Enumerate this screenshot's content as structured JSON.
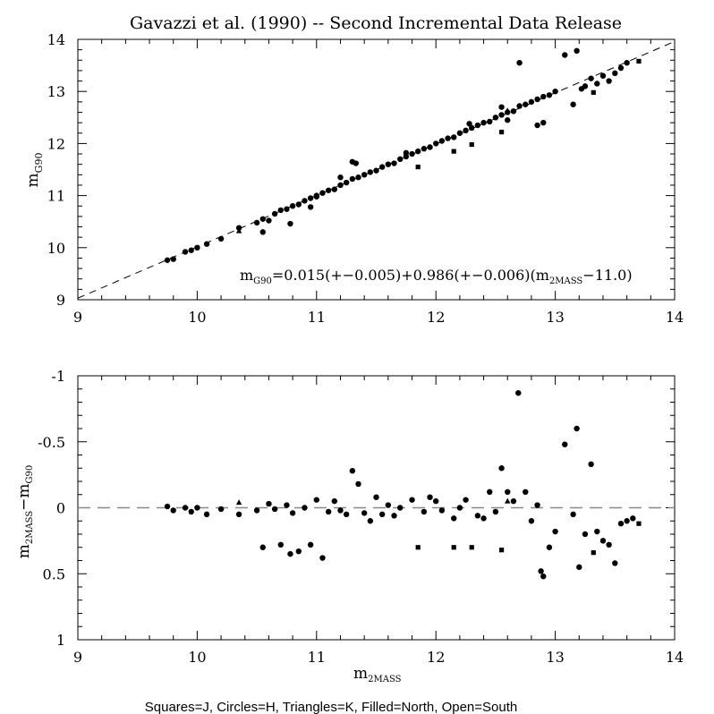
{
  "title": "Gavazzi et al. (1990) -- Second Incremental Data Release",
  "footer": "Squares=J, Circles=H, Triangles=K, Filled=North, Open=South",
  "colors": {
    "ink": "#000000",
    "background": "#ffffff"
  },
  "chart_data": [
    {
      "type": "scatter",
      "ylabel_main": "m",
      "ylabel_sub": "G90",
      "xlim": [
        9,
        14
      ],
      "ylim": [
        9,
        14
      ],
      "xticks": [
        "9",
        "10",
        "11",
        "12",
        "13",
        "14"
      ],
      "yticks": [
        "9",
        "10",
        "11",
        "12",
        "13",
        "14"
      ],
      "fit_line": {
        "style": "dashed",
        "x": [
          9,
          14
        ],
        "y": [
          9.03,
          13.96
        ]
      },
      "annotation": "m_G90=0.015(+-0.005)+0.986(+-0.006)(m_2MASS-11.0)",
      "annotation_parts": {
        "a": "m",
        "a_sub": "G90",
        "b": "=0.015(+−0.005)+0.986(+−0.006)(m",
        "b_sub": "2MASS",
        "c": "−11.0)"
      },
      "series": [
        {
          "marker": "circle-filled",
          "points": [
            [
              9.75,
              9.76
            ],
            [
              9.8,
              9.78
            ],
            [
              9.9,
              9.92
            ],
            [
              9.95,
              9.95
            ],
            [
              10.0,
              10.0
            ],
            [
              10.08,
              10.07
            ],
            [
              10.2,
              10.17
            ],
            [
              10.35,
              10.38
            ],
            [
              10.5,
              10.48
            ],
            [
              10.55,
              10.55
            ],
            [
              10.6,
              10.52
            ],
            [
              10.65,
              10.65
            ],
            [
              10.7,
              10.72
            ],
            [
              10.75,
              10.74
            ],
            [
              10.8,
              10.8
            ],
            [
              10.85,
              10.83
            ],
            [
              10.9,
              10.9
            ],
            [
              10.95,
              10.95
            ],
            [
              11.0,
              11.0
            ],
            [
              11.05,
              11.05
            ],
            [
              11.1,
              11.1
            ],
            [
              11.15,
              11.12
            ],
            [
              11.2,
              11.2
            ],
            [
              11.25,
              11.25
            ],
            [
              11.3,
              11.32
            ],
            [
              11.35,
              11.35
            ],
            [
              11.4,
              11.4
            ],
            [
              11.45,
              11.45
            ],
            [
              11.5,
              11.48
            ],
            [
              11.55,
              11.55
            ],
            [
              11.6,
              11.6
            ],
            [
              11.65,
              11.62
            ],
            [
              11.7,
              11.7
            ],
            [
              11.75,
              11.75
            ],
            [
              11.8,
              11.8
            ],
            [
              11.85,
              11.85
            ],
            [
              11.9,
              11.9
            ],
            [
              11.95,
              11.93
            ],
            [
              12.0,
              12.0
            ],
            [
              12.05,
              12.05
            ],
            [
              12.1,
              12.1
            ],
            [
              12.15,
              12.12
            ],
            [
              12.2,
              12.2
            ],
            [
              12.25,
              12.25
            ],
            [
              12.3,
              12.3
            ],
            [
              12.35,
              12.35
            ],
            [
              12.4,
              12.4
            ],
            [
              12.45,
              12.42
            ],
            [
              12.5,
              12.5
            ],
            [
              12.55,
              12.55
            ],
            [
              12.6,
              12.6
            ],
            [
              12.65,
              12.62
            ],
            [
              12.7,
              12.72
            ],
            [
              12.75,
              12.75
            ],
            [
              12.8,
              12.8
            ],
            [
              12.85,
              12.85
            ],
            [
              12.9,
              12.9
            ],
            [
              12.95,
              12.93
            ],
            [
              13.0,
              13.0
            ],
            [
              10.55,
              10.3
            ],
            [
              10.78,
              10.46
            ],
            [
              10.95,
              10.78
            ],
            [
              11.3,
              11.65
            ],
            [
              11.33,
              11.62
            ],
            [
              12.7,
              13.55
            ],
            [
              13.08,
              13.7
            ],
            [
              13.18,
              13.78
            ],
            [
              13.25,
              13.1
            ],
            [
              13.3,
              13.25
            ],
            [
              13.4,
              13.3
            ],
            [
              13.5,
              13.35
            ],
            [
              13.55,
              13.45
            ],
            [
              13.6,
              13.55
            ],
            [
              13.35,
              13.15
            ],
            [
              13.45,
              13.2
            ],
            [
              13.22,
              13.05
            ],
            [
              12.85,
              12.35
            ],
            [
              12.9,
              12.4
            ],
            [
              13.15,
              12.75
            ],
            [
              11.0,
              10.98
            ],
            [
              11.2,
              11.35
            ],
            [
              11.75,
              11.82
            ],
            [
              12.28,
              12.38
            ],
            [
              12.55,
              12.7
            ],
            [
              12.6,
              12.45
            ]
          ]
        },
        {
          "marker": "square-filled",
          "points": [
            [
              11.85,
              11.55
            ],
            [
              12.15,
              11.85
            ],
            [
              12.3,
              11.98
            ],
            [
              12.55,
              12.22
            ],
            [
              13.32,
              12.98
            ],
            [
              13.7,
              13.58
            ]
          ]
        },
        {
          "marker": "triangle-filled",
          "points": [
            [
              10.35,
              10.32
            ],
            [
              12.6,
              12.63
            ]
          ]
        }
      ]
    },
    {
      "type": "scatter",
      "ylabel_a": "m",
      "ylabel_a_sub": "2MASS",
      "ylabel_b": "−m",
      "ylabel_b_sub": "G90",
      "xlabel_main": "m",
      "xlabel_sub": "2MASS",
      "xlim": [
        9,
        14
      ],
      "ylim": [
        1,
        -1
      ],
      "xticks": [
        "9",
        "10",
        "11",
        "12",
        "13",
        "14"
      ],
      "yticks": [
        "1",
        "0.5",
        "0",
        "-0.5",
        "-1"
      ],
      "zero_line": {
        "style": "dashed",
        "y": 0
      },
      "series": [
        {
          "marker": "circle-filled",
          "points": [
            [
              9.75,
              -0.01
            ],
            [
              9.8,
              0.02
            ],
            [
              9.9,
              0.0
            ],
            [
              9.95,
              0.03
            ],
            [
              10.0,
              0.0
            ],
            [
              10.08,
              0.05
            ],
            [
              10.2,
              0.01
            ],
            [
              10.35,
              0.05
            ],
            [
              10.5,
              0.02
            ],
            [
              10.55,
              0.3
            ],
            [
              10.7,
              0.28
            ],
            [
              10.78,
              0.35
            ],
            [
              10.85,
              0.33
            ],
            [
              10.95,
              0.28
            ],
            [
              11.05,
              0.38
            ],
            [
              10.6,
              -0.03
            ],
            [
              10.65,
              0.01
            ],
            [
              10.75,
              -0.02
            ],
            [
              10.8,
              0.04
            ],
            [
              10.9,
              0.0
            ],
            [
              11.0,
              -0.06
            ],
            [
              11.1,
              0.03
            ],
            [
              11.15,
              -0.05
            ],
            [
              11.2,
              0.02
            ],
            [
              11.3,
              -0.28
            ],
            [
              11.35,
              -0.18
            ],
            [
              11.4,
              0.04
            ],
            [
              11.5,
              -0.08
            ],
            [
              11.55,
              0.05
            ],
            [
              11.6,
              -0.02
            ],
            [
              11.7,
              0.0
            ],
            [
              11.8,
              -0.06
            ],
            [
              11.9,
              0.03
            ],
            [
              12.0,
              -0.05
            ],
            [
              12.05,
              0.02
            ],
            [
              12.15,
              0.08
            ],
            [
              12.25,
              -0.06
            ],
            [
              12.35,
              0.06
            ],
            [
              12.45,
              -0.12
            ],
            [
              12.5,
              0.03
            ],
            [
              12.55,
              -0.3
            ],
            [
              12.6,
              -0.12
            ],
            [
              12.65,
              -0.05
            ],
            [
              12.69,
              -0.87
            ],
            [
              12.75,
              -0.12
            ],
            [
              12.8,
              0.1
            ],
            [
              12.88,
              0.48
            ],
            [
              12.9,
              0.52
            ],
            [
              12.95,
              0.3
            ],
            [
              13.0,
              0.18
            ],
            [
              13.08,
              -0.48
            ],
            [
              13.18,
              -0.6
            ],
            [
              13.25,
              0.2
            ],
            [
              13.3,
              -0.33
            ],
            [
              13.35,
              0.18
            ],
            [
              13.4,
              0.25
            ],
            [
              13.45,
              0.28
            ],
            [
              13.5,
              0.42
            ],
            [
              13.55,
              0.12
            ],
            [
              13.6,
              0.1
            ],
            [
              13.65,
              0.08
            ],
            [
              13.2,
              0.45
            ],
            [
              13.15,
              0.05
            ],
            [
              12.85,
              -0.02
            ],
            [
              11.25,
              0.05
            ],
            [
              11.45,
              0.1
            ],
            [
              11.65,
              0.06
            ],
            [
              11.95,
              -0.08
            ],
            [
              12.2,
              0.0
            ],
            [
              12.4,
              0.08
            ]
          ]
        },
        {
          "marker": "square-filled",
          "points": [
            [
              11.85,
              0.3
            ],
            [
              12.15,
              0.3
            ],
            [
              12.3,
              0.3
            ],
            [
              12.55,
              0.32
            ],
            [
              13.32,
              0.34
            ],
            [
              13.7,
              0.12
            ]
          ]
        },
        {
          "marker": "triangle-filled",
          "points": [
            [
              10.35,
              -0.04
            ],
            [
              12.6,
              -0.05
            ]
          ]
        }
      ]
    }
  ]
}
